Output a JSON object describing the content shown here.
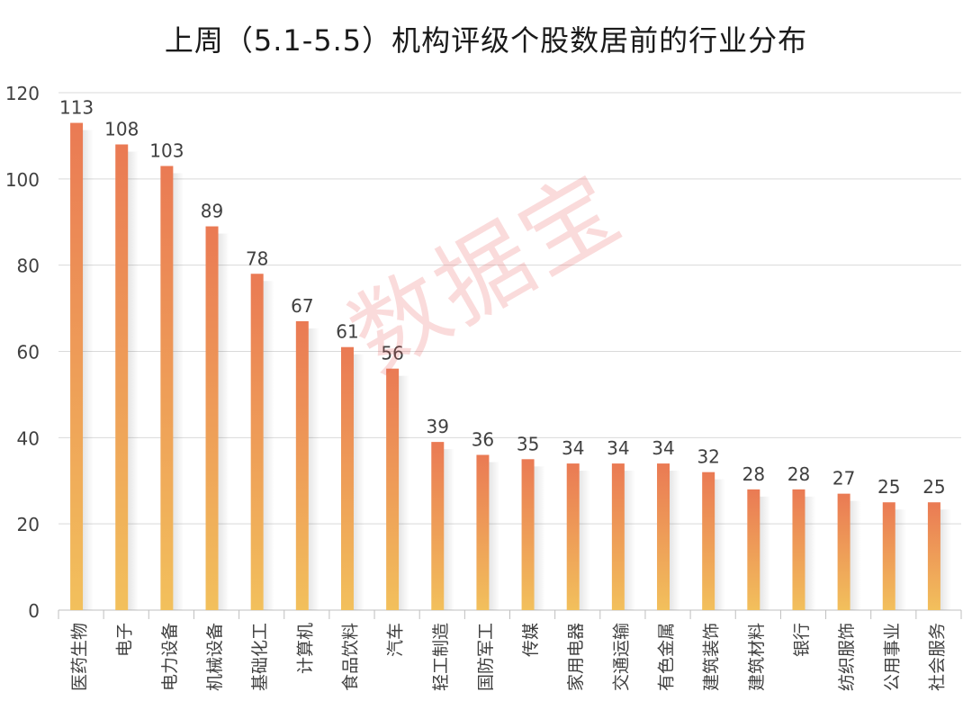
{
  "chart_data": {
    "type": "bar",
    "title": "上周（5.1-5.5）机构评级个股数居前的行业分布",
    "xlabel": "",
    "ylabel": "",
    "ylim": [
      0,
      120
    ],
    "yticks": [
      0,
      20,
      40,
      60,
      80,
      100,
      120
    ],
    "grid": true,
    "categories": [
      "医药生物",
      "电子",
      "电力设备",
      "机械设备",
      "基础化工",
      "计算机",
      "食品饮料",
      "汽车",
      "轻工制造",
      "国防军工",
      "传媒",
      "家用电器",
      "交通运输",
      "有色金属",
      "建筑装饰",
      "建筑材料",
      "银行",
      "纺织服饰",
      "公用事业",
      "社会服务"
    ],
    "values": [
      113,
      108,
      103,
      89,
      78,
      67,
      61,
      56,
      39,
      36,
      35,
      34,
      34,
      34,
      32,
      28,
      28,
      27,
      25,
      25
    ],
    "colors": {
      "bar_top": "#ea7a54",
      "bar_bottom": "#f2c05c",
      "grid": "#d9d9d9",
      "axis": "#bfbfbf",
      "text": "#404040"
    }
  },
  "watermark": "数据宝"
}
